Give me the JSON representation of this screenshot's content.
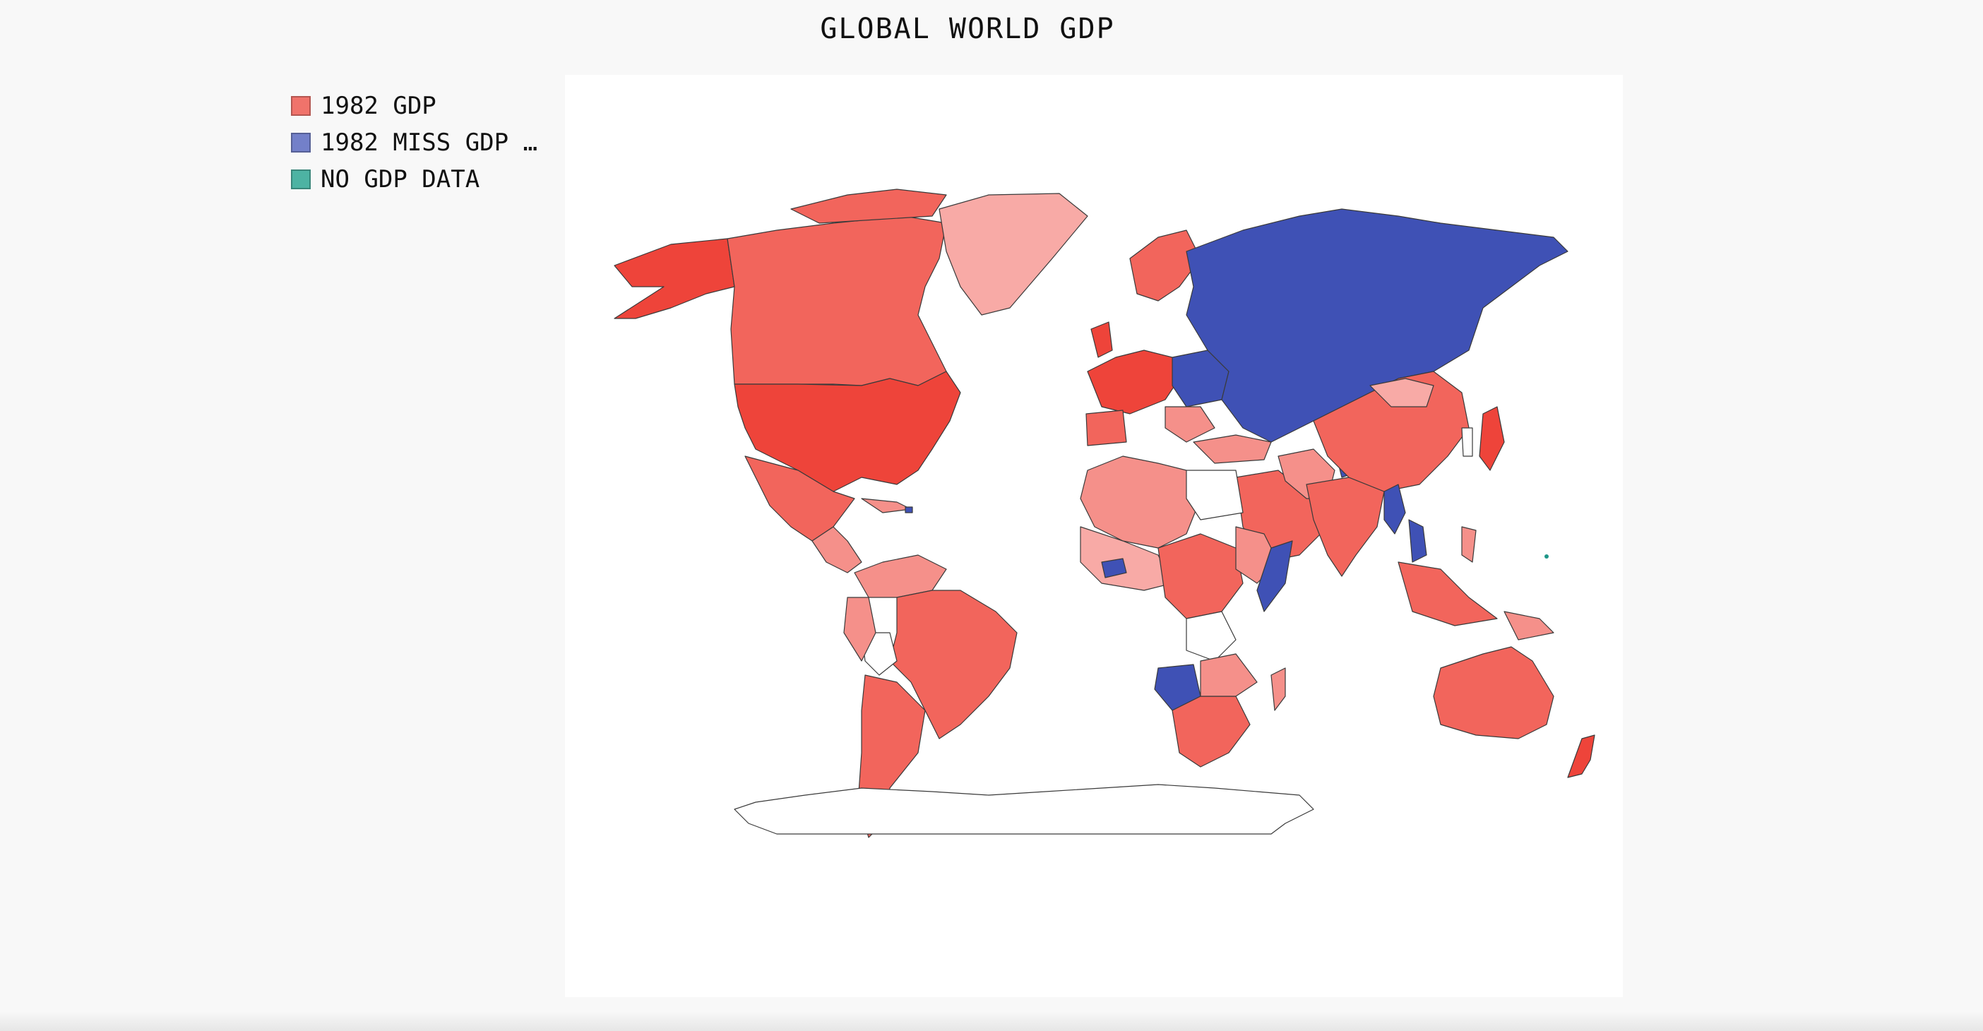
{
  "title": "GLOBAL WORLD GDP",
  "legend": [
    {
      "label": "1982 GDP",
      "color": "#f0736b"
    },
    {
      "label": "1982 MISS GDP …",
      "color": "#7380c9"
    },
    {
      "label": "NO GDP DATA",
      "color": "#4db3a3"
    }
  ],
  "colors": {
    "gdp_dark": "#ee443a",
    "gdp_mid": "#f2655c",
    "gdp_light": "#f5908a",
    "gdp_pale": "#f8aaa6",
    "miss_gdp": "#3f51b5",
    "no_data": "#1e9688",
    "no_region": "#ffffff",
    "panel": "#ffffff",
    "page": "#f8f8f8"
  }
}
